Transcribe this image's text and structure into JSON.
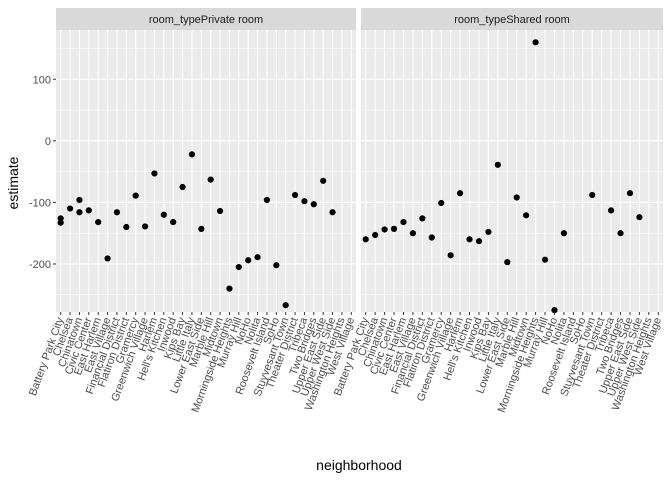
{
  "chart_data": {
    "type": "scatter",
    "xlabel": "neighborhood",
    "ylabel": "estimate",
    "ylim": [
      -278,
      180
    ],
    "y_ticks": [
      -200,
      -100,
      0,
      100
    ],
    "y_tick_labels": [
      "-200",
      "-100",
      "0",
      "100"
    ],
    "grid": true,
    "colors": {
      "panel_background": "#ebebeb",
      "strip_background": "#d9d9d9",
      "grid_major": "#ffffff",
      "point": "#000000"
    },
    "categories": [
      "Battery Park City",
      "Chelsea",
      "Chinatown",
      "Civic Center",
      "East Harlem",
      "East Village",
      "Financial District",
      "Flatiron District",
      "Gramercy",
      "Greenwich Village",
      "Harlem",
      "Hell's Kitchen",
      "Inwood",
      "Kips Bay",
      "Little Italy",
      "Lower East Side",
      "Marble Hill",
      "Midtown",
      "Morningside Heights",
      "Murray Hill",
      "NoHo",
      "Nolita",
      "Roosevelt Island",
      "SoHo",
      "Stuyvesant Town",
      "Theater District",
      "Tribeca",
      "Two Bridges",
      "Upper East Side",
      "Upper West Side",
      "Washington Heights",
      "West Village"
    ],
    "panels": [
      {
        "label": "room_typePrivate room",
        "points": [
          {
            "x": "Battery Park City",
            "y": -126
          },
          {
            "x": "Battery Park City",
            "y": -133
          },
          {
            "x": "Chelsea",
            "y": -110
          },
          {
            "x": "Chinatown",
            "y": -96
          },
          {
            "x": "Chinatown",
            "y": -116
          },
          {
            "x": "Civic Center",
            "y": -113
          },
          {
            "x": "East Harlem",
            "y": -132
          },
          {
            "x": "East Village",
            "y": -191
          },
          {
            "x": "Financial District",
            "y": -116
          },
          {
            "x": "Flatiron District",
            "y": -140
          },
          {
            "x": "Gramercy",
            "y": -89
          },
          {
            "x": "Greenwich Village",
            "y": -139
          },
          {
            "x": "Harlem",
            "y": -53
          },
          {
            "x": "Hell's Kitchen",
            "y": -120
          },
          {
            "x": "Inwood",
            "y": -132
          },
          {
            "x": "Kips Bay",
            "y": -75
          },
          {
            "x": "Little Italy",
            "y": -22
          },
          {
            "x": "Lower East Side",
            "y": -143
          },
          {
            "x": "Marble Hill",
            "y": -63
          },
          {
            "x": "Midtown",
            "y": -114
          },
          {
            "x": "Morningside Heights",
            "y": -240
          },
          {
            "x": "Murray Hill",
            "y": -205
          },
          {
            "x": "NoHo",
            "y": -194
          },
          {
            "x": "Nolita",
            "y": -189
          },
          {
            "x": "Roosevelt Island",
            "y": -96
          },
          {
            "x": "SoHo",
            "y": -202
          },
          {
            "x": "Stuyvesant Town",
            "y": -267
          },
          {
            "x": "Theater District",
            "y": -88
          },
          {
            "x": "Tribeca",
            "y": -98
          },
          {
            "x": "Two Bridges",
            "y": -103
          },
          {
            "x": "Upper East Side",
            "y": -65
          },
          {
            "x": "Upper West Side",
            "y": -116
          }
        ]
      },
      {
        "label": "room_typeShared room",
        "points": [
          {
            "x": "Battery Park City",
            "y": -160
          },
          {
            "x": "Chelsea",
            "y": -153
          },
          {
            "x": "Chinatown",
            "y": -144
          },
          {
            "x": "Civic Center",
            "y": -143
          },
          {
            "x": "East Harlem",
            "y": -132
          },
          {
            "x": "East Village",
            "y": -150
          },
          {
            "x": "Financial District",
            "y": -126
          },
          {
            "x": "Flatiron District",
            "y": -157
          },
          {
            "x": "Gramercy",
            "y": -101
          },
          {
            "x": "Greenwich Village",
            "y": -186
          },
          {
            "x": "Harlem",
            "y": -85
          },
          {
            "x": "Hell's Kitchen",
            "y": -160
          },
          {
            "x": "Inwood",
            "y": -163
          },
          {
            "x": "Kips Bay",
            "y": -148
          },
          {
            "x": "Little Italy",
            "y": -39
          },
          {
            "x": "Lower East Side",
            "y": -197
          },
          {
            "x": "Marble Hill",
            "y": -92
          },
          {
            "x": "Midtown",
            "y": -121
          },
          {
            "x": "Morningside Heights",
            "y": 160
          },
          {
            "x": "Murray Hill",
            "y": -193
          },
          {
            "x": "NoHo",
            "y": -275
          },
          {
            "x": "Nolita",
            "y": -150
          },
          {
            "x": "Stuyvesant Town",
            "y": -88
          },
          {
            "x": "Tribeca",
            "y": -113
          },
          {
            "x": "Two Bridges",
            "y": -150
          },
          {
            "x": "Upper East Side",
            "y": -85
          },
          {
            "x": "Upper West Side",
            "y": -124
          }
        ]
      }
    ]
  }
}
